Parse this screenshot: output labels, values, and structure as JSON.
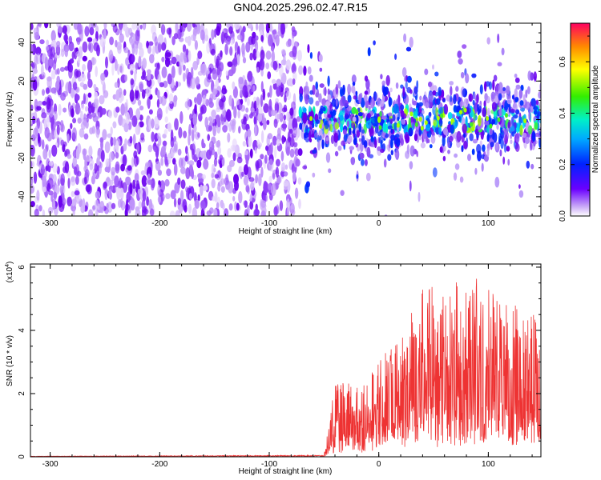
{
  "title": "GN04.2025.296.02.47.R15",
  "chart_data": [
    {
      "type": "heatmap",
      "xlabel": "Height of straight line (km)",
      "ylabel": "Frequency (Hz)",
      "xlim": [
        -318,
        148
      ],
      "ylim": [
        -50,
        50
      ],
      "x_ticks": [
        -300,
        -200,
        -100,
        0,
        100
      ],
      "y_ticks": [
        -40,
        -20,
        0,
        20,
        40
      ],
      "noise_region_x": [
        -318,
        -72
      ],
      "signal_band_hz": [
        -12,
        12
      ],
      "colorbar": {
        "label": "Normalized spectral amplitude",
        "range": [
          0.0,
          0.75
        ],
        "ticks": [
          0.0,
          0.2,
          0.4,
          0.6
        ],
        "tick_labels": [
          "0.0",
          "0.2",
          "0.4",
          "0.6"
        ]
      },
      "grid": false
    },
    {
      "type": "line",
      "xlabel": "Height of straight line (km)",
      "ylabel": "SNR (10 * v/v)",
      "scale_label": "(x10",
      "scale_exp": "4",
      "scale_close": ")",
      "xlim": [
        -318,
        148
      ],
      "ylim": [
        0,
        6.1
      ],
      "x_ticks": [
        -300,
        -200,
        -100,
        0,
        100
      ],
      "y_ticks": [
        0,
        2,
        4,
        6
      ],
      "line_color": "#ee3333",
      "envelope": {
        "x": [
          -318,
          -50,
          -45,
          -40,
          -30,
          -20,
          -10,
          0,
          10,
          20,
          30,
          40,
          50,
          60,
          70,
          80,
          90,
          100,
          110,
          120,
          130,
          140,
          148
        ],
        "y": [
          0.02,
          0.05,
          1.2,
          2.3,
          2.4,
          2.2,
          2.5,
          3.0,
          3.5,
          4.0,
          4.8,
          5.3,
          5.5,
          5.0,
          5.6,
          5.2,
          5.8,
          5.4,
          5.0,
          5.2,
          4.4,
          4.8,
          4.2
        ]
      },
      "grid": false
    }
  ]
}
